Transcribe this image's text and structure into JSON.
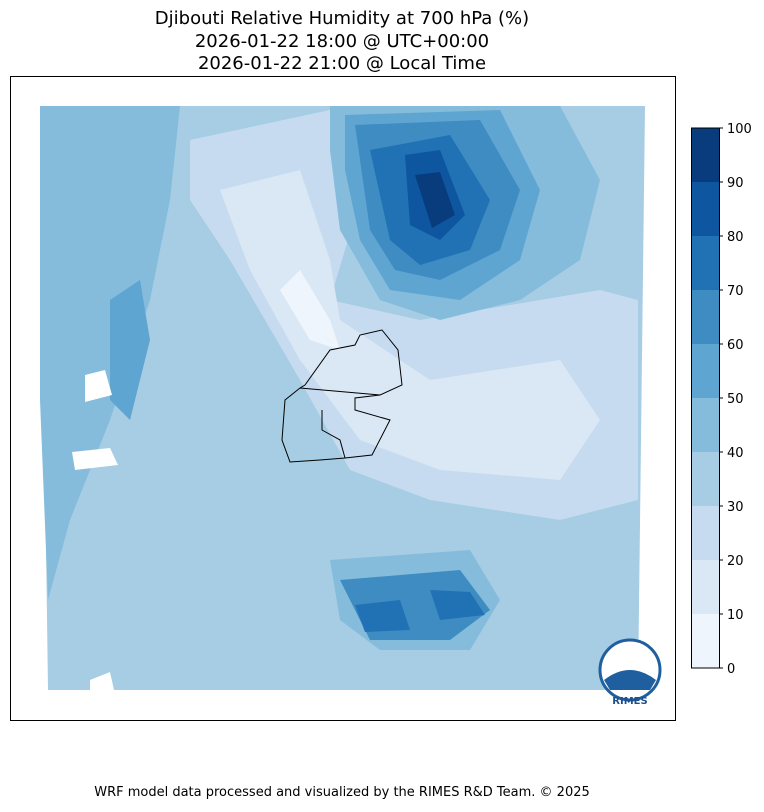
{
  "title_lines": [
    "Djibouti Relative Humidity at 700 hPa (%)",
    "2026-01-22 18:00 @ UTC+00:00",
    "2026-01-22 21:00 @ Local Time"
  ],
  "colorbar": {
    "ticks": [
      0,
      10,
      20,
      30,
      40,
      50,
      60,
      70,
      80,
      90,
      100
    ],
    "colors": [
      "#eef5fc",
      "#dae8f5",
      "#c6dbef",
      "#a6cde3",
      "#85bcdc",
      "#5fa5d1",
      "#3f8cc2",
      "#2171b5",
      "#0f56a0",
      "#083c7d"
    ]
  },
  "logo_text": "RIMES",
  "footer": "WRF model data processed and visualized by the RIMES R&D Team. © 2025"
}
